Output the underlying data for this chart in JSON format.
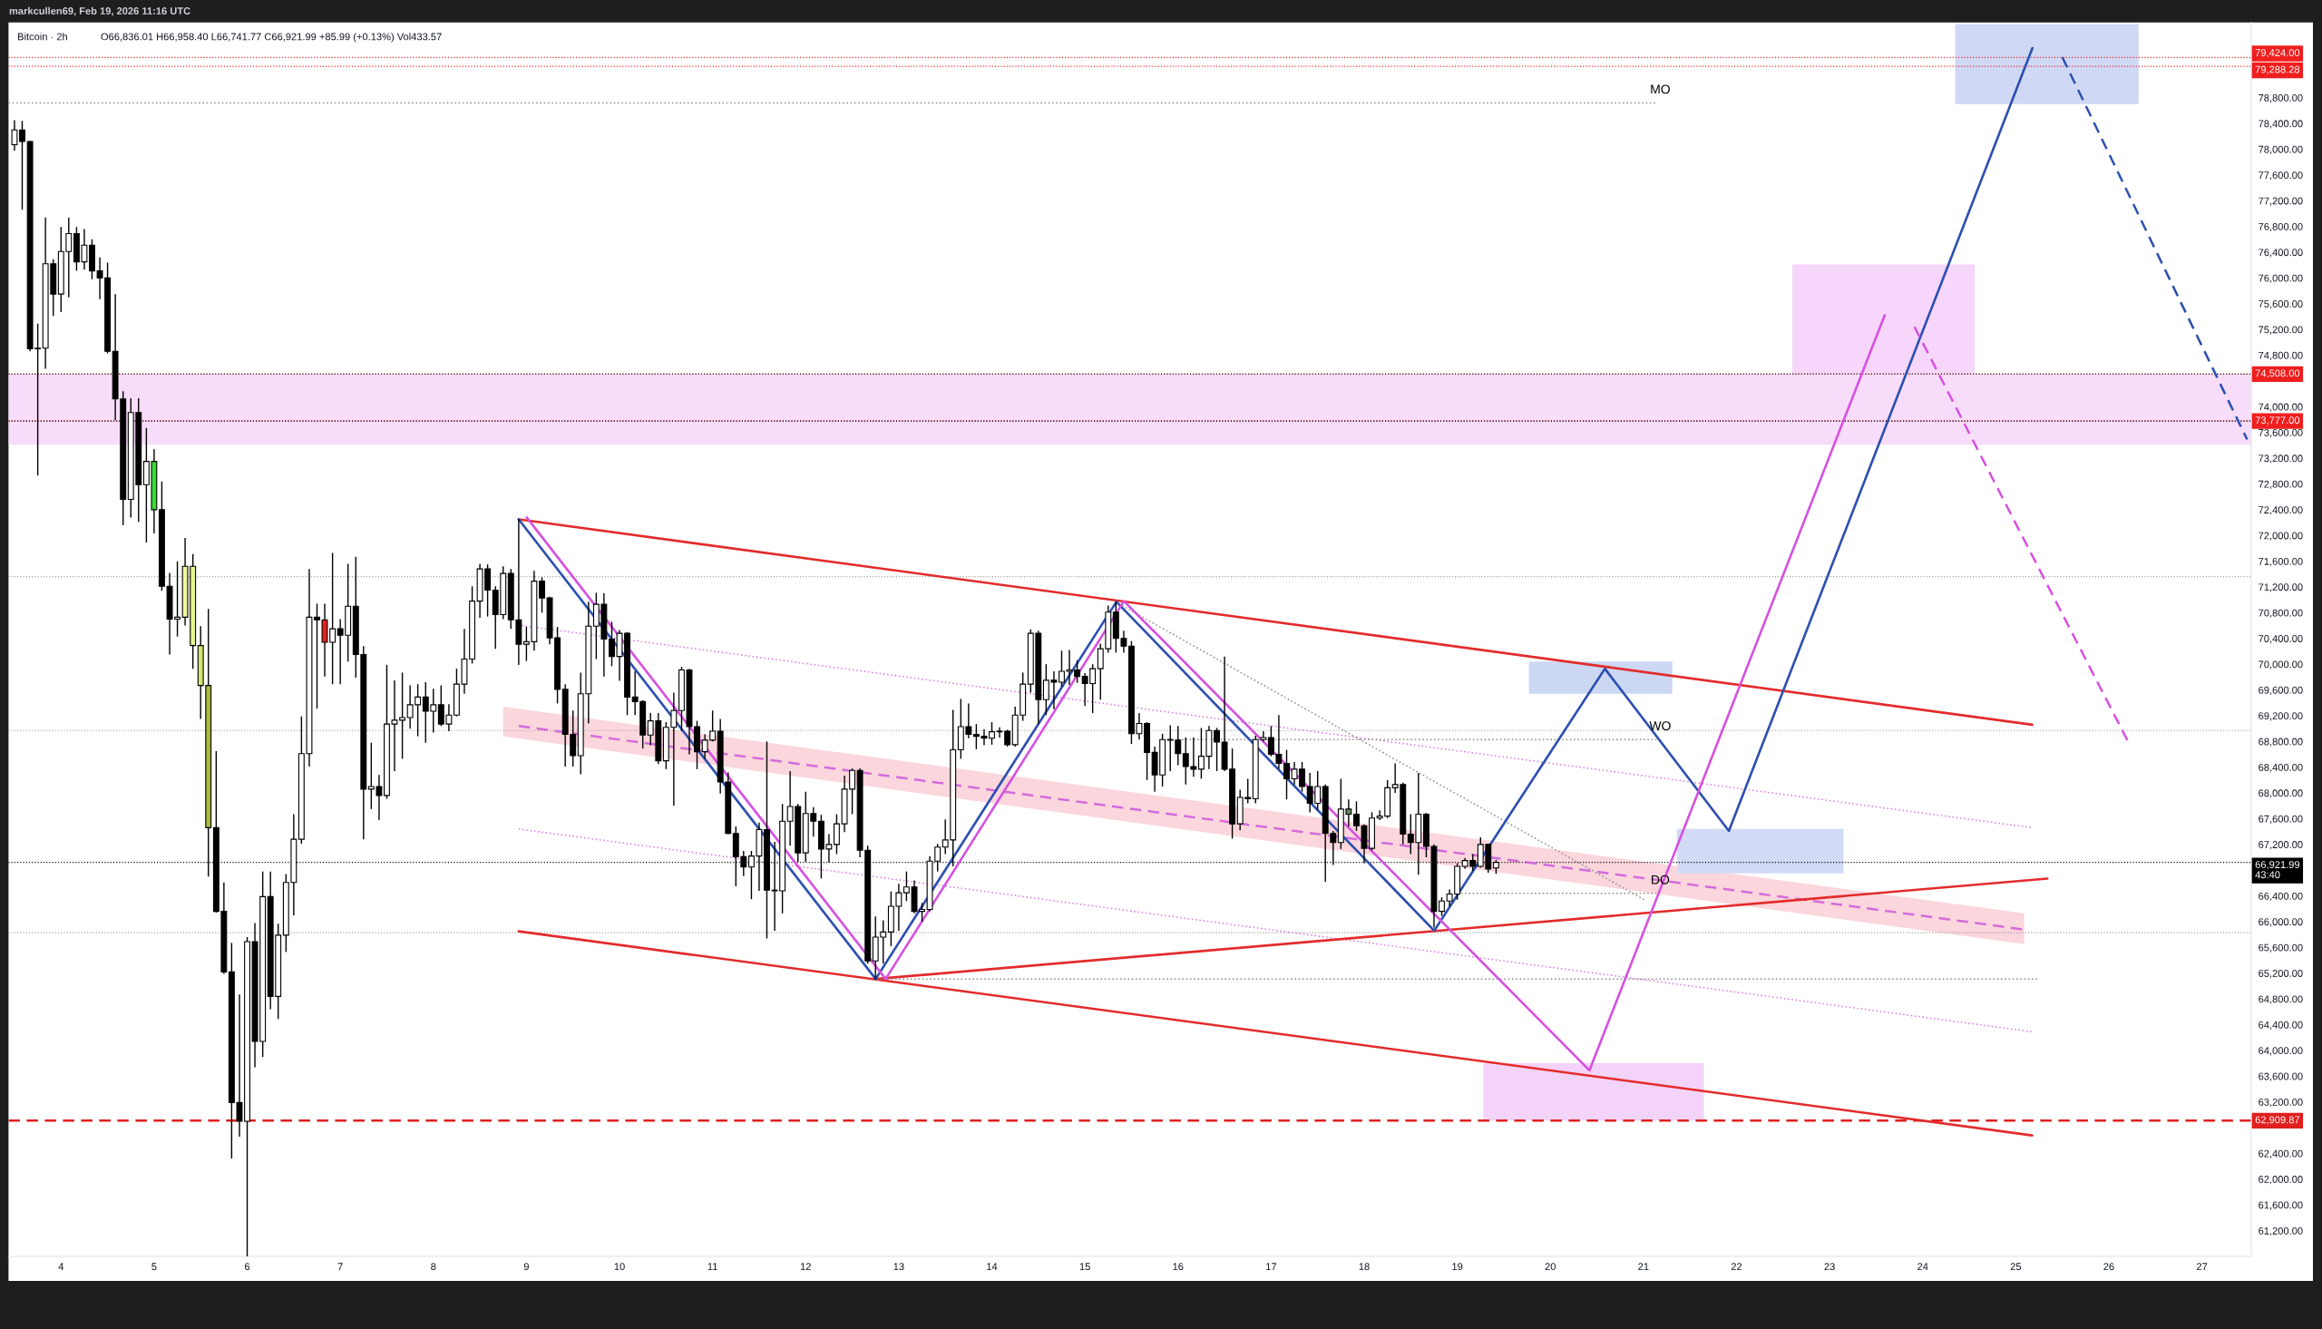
{
  "chart_data": {
    "type": "candlestick",
    "title": "Bitcoin · 2h",
    "subtitle": "O66,836.01 H66,958.40 L66,741.77 C66,921.99 +85.99 (+0.13%) Vol433.57",
    "annotations": [
      "markcullen69, Feb 19, 2026 11:16 UTC"
    ],
    "x": [
      3.5,
      3.583,
      3.667,
      3.75,
      3.833,
      3.917,
      4,
      4.083,
      4.167,
      4.25,
      4.333,
      4.417,
      4.5,
      4.583,
      4.667,
      4.75,
      4.833,
      4.917,
      5,
      5.083,
      5.167,
      5.25,
      5.333,
      5.417,
      5.5,
      5.583,
      5.667,
      5.75,
      5.833,
      5.917,
      6,
      6.083,
      6.167,
      6.25,
      6.333,
      6.417,
      6.5,
      6.583,
      6.667,
      6.75,
      6.833,
      6.917,
      7,
      7.083,
      7.167,
      7.25,
      7.333,
      7.417,
      7.5,
      7.583,
      7.667,
      7.75,
      7.833,
      7.917,
      8,
      8.083,
      8.167,
      8.25,
      8.333,
      8.417,
      8.5,
      8.583,
      8.667,
      8.75,
      8.833,
      8.917,
      9,
      9.083,
      9.167,
      9.25,
      9.333,
      9.417,
      9.5,
      9.583,
      9.667,
      9.75,
      9.833,
      9.917,
      10,
      10.083,
      10.167,
      10.25,
      10.333,
      10.417,
      10.5,
      10.583,
      10.667,
      10.75,
      10.833,
      10.917,
      11,
      11.083,
      11.167,
      11.25,
      11.333,
      11.417,
      11.5,
      11.583,
      11.667,
      11.75,
      11.833,
      11.917,
      12,
      12.083,
      12.167,
      12.25,
      12.333,
      12.417,
      12.5,
      12.583,
      12.667,
      12.75,
      12.833,
      12.917,
      13,
      13.083,
      13.167,
      13.25,
      13.333,
      13.417,
      13.5,
      13.583,
      13.667,
      13.75,
      13.833,
      13.917,
      14,
      14.083,
      14.167,
      14.25,
      14.333,
      14.417,
      14.5,
      14.583,
      14.667,
      14.75,
      14.833,
      14.917,
      15,
      15.083,
      15.167,
      15.25,
      15.333,
      15.417,
      15.5,
      15.583,
      15.667,
      15.75,
      15.833,
      15.917,
      16,
      16.083,
      16.167,
      16.25,
      16.333,
      16.417,
      16.5,
      16.583,
      16.667,
      16.75,
      16.833,
      16.917,
      17,
      17.083,
      17.167,
      17.25,
      17.333,
      17.417,
      17.5,
      17.583,
      17.667,
      17.75,
      17.833,
      17.917,
      18,
      18.083,
      18.167,
      18.25,
      18.333,
      18.417,
      18.5,
      18.583,
      18.667,
      18.75,
      18.833,
      18.917,
      19,
      19.083,
      19.167,
      19.25,
      19.333,
      19.417
    ],
    "ohlc": [
      [
        78070,
        78450,
        77980,
        78300
      ],
      [
        78300,
        78440,
        77060,
        78120
      ],
      [
        78120,
        78130,
        74860,
        74900
      ],
      [
        74900,
        75290,
        72930,
        74910
      ],
      [
        74910,
        76940,
        74590,
        76220
      ],
      [
        76220,
        76290,
        75410,
        75750
      ],
      [
        75750,
        76790,
        75470,
        76410
      ],
      [
        76410,
        76940,
        75700,
        76690
      ],
      [
        76690,
        76790,
        76110,
        76250
      ],
      [
        76250,
        76760,
        76130,
        76510
      ],
      [
        76510,
        76600,
        75980,
        76110
      ],
      [
        76110,
        76320,
        75670,
        76000
      ],
      [
        76000,
        76240,
        74830,
        74860
      ],
      [
        74860,
        75750,
        73790,
        74120
      ],
      [
        74120,
        74240,
        72160,
        72560
      ],
      [
        72560,
        74130,
        72280,
        73910
      ],
      [
        73910,
        74130,
        72210,
        72790
      ],
      [
        72790,
        73670,
        71890,
        73150
      ],
      [
        73150,
        73340,
        72030,
        72400
      ],
      [
        72400,
        72840,
        71140,
        71210
      ],
      [
        71210,
        71420,
        70150,
        70700
      ],
      [
        70700,
        71600,
        70430,
        70730
      ],
      [
        70730,
        71960,
        70600,
        71520
      ],
      [
        71520,
        71710,
        69930,
        70290
      ],
      [
        70290,
        70590,
        69150,
        69670
      ],
      [
        69670,
        70860,
        66700,
        67460
      ],
      [
        67460,
        68650,
        66140,
        66160
      ],
      [
        66160,
        66610,
        65190,
        65220
      ],
      [
        65220,
        65670,
        62320,
        63190
      ],
      [
        63190,
        64870,
        62660,
        62900
      ],
      [
        62900,
        65760,
        60800,
        65690
      ],
      [
        65690,
        65980,
        63740,
        64140
      ],
      [
        64140,
        66780,
        63900,
        66390
      ],
      [
        66390,
        66780,
        64640,
        64840
      ],
      [
        64840,
        65970,
        64490,
        65790
      ],
      [
        65790,
        66740,
        65530,
        66610
      ],
      [
        66610,
        67670,
        66100,
        67280
      ],
      [
        67280,
        69190,
        67210,
        68610
      ],
      [
        68610,
        71480,
        68410,
        70730
      ],
      [
        70730,
        70940,
        69310,
        70690
      ],
      [
        70690,
        70940,
        69810,
        70340
      ],
      [
        70340,
        71730,
        69690,
        70550
      ],
      [
        70550,
        70700,
        69690,
        70450
      ],
      [
        70450,
        71560,
        70040,
        70900
      ],
      [
        70900,
        71670,
        69790,
        70150
      ],
      [
        70150,
        70280,
        67280,
        68060
      ],
      [
        68060,
        68780,
        67750,
        68100
      ],
      [
        68100,
        68280,
        67580,
        67960
      ],
      [
        67960,
        69990,
        67910,
        69070
      ],
      [
        69070,
        69750,
        68340,
        69130
      ],
      [
        69130,
        69870,
        68530,
        69170
      ],
      [
        69170,
        69670,
        69000,
        69370
      ],
      [
        69370,
        69690,
        68880,
        69490
      ],
      [
        69490,
        69720,
        68780,
        69270
      ],
      [
        69270,
        69620,
        68940,
        69370
      ],
      [
        69370,
        69670,
        69040,
        69070
      ],
      [
        69070,
        69380,
        68960,
        69210
      ],
      [
        69210,
        69930,
        69190,
        69690
      ],
      [
        69690,
        70550,
        69540,
        70080
      ],
      [
        70080,
        71210,
        70010,
        70980
      ],
      [
        70980,
        71560,
        70720,
        71480
      ],
      [
        71480,
        71550,
        70740,
        71150
      ],
      [
        71150,
        71210,
        70240,
        70770
      ],
      [
        70770,
        71520,
        70700,
        71410
      ],
      [
        71410,
        71480,
        70550,
        70690
      ],
      [
        70690,
        72250,
        69990,
        70310
      ],
      [
        70310,
        70580,
        70050,
        70350
      ],
      [
        70350,
        71450,
        70210,
        71290
      ],
      [
        71290,
        71350,
        70800,
        71030
      ],
      [
        71030,
        71050,
        70310,
        70410
      ],
      [
        70410,
        70580,
        69390,
        69610
      ],
      [
        69610,
        69690,
        68410,
        68910
      ],
      [
        68910,
        69280,
        68410,
        68580
      ],
      [
        68580,
        69870,
        68290,
        69540
      ],
      [
        69540,
        70970,
        69080,
        70590
      ],
      [
        70590,
        71110,
        70080,
        70930
      ],
      [
        70930,
        71100,
        69810,
        70390
      ],
      [
        70390,
        70660,
        69970,
        70120
      ],
      [
        70120,
        70530,
        69740,
        70480
      ],
      [
        70480,
        70500,
        69210,
        69490
      ],
      [
        69490,
        69890,
        69210,
        69420
      ],
      [
        69420,
        69440,
        68690,
        68900
      ],
      [
        68900,
        69240,
        68740,
        69120
      ],
      [
        69120,
        69240,
        68450,
        68500
      ],
      [
        68500,
        69100,
        68370,
        69020
      ],
      [
        69020,
        69560,
        67800,
        69280
      ],
      [
        69280,
        69960,
        68960,
        69910
      ],
      [
        69910,
        69930,
        68600,
        69030
      ],
      [
        69030,
        69120,
        68370,
        68640
      ],
      [
        68640,
        68910,
        68530,
        68820
      ],
      [
        68820,
        69280,
        68800,
        68960
      ],
      [
        68960,
        69150,
        67990,
        68170
      ],
      [
        68170,
        68320,
        67360,
        67370
      ],
      [
        67370,
        67480,
        66550,
        67010
      ],
      [
        67010,
        67100,
        66710,
        66850
      ],
      [
        66850,
        67100,
        66350,
        67020
      ],
      [
        67020,
        67540,
        66480,
        67430
      ],
      [
        67430,
        68800,
        65740,
        66490
      ],
      [
        66490,
        67240,
        65860,
        66480
      ],
      [
        66480,
        67830,
        66130,
        67560
      ],
      [
        67560,
        68340,
        67180,
        67790
      ],
      [
        67790,
        67830,
        66930,
        67070
      ],
      [
        67070,
        68020,
        66930,
        67680
      ],
      [
        67680,
        67780,
        67320,
        67560
      ],
      [
        67560,
        67660,
        66670,
        67130
      ],
      [
        67130,
        67360,
        66920,
        67200
      ],
      [
        67200,
        67670,
        67050,
        67520
      ],
      [
        67520,
        68270,
        67390,
        68060
      ],
      [
        68060,
        68380,
        67670,
        68350
      ],
      [
        68350,
        68380,
        67000,
        67110
      ],
      [
        67110,
        67180,
        65350,
        65390
      ],
      [
        65390,
        66080,
        65110,
        65760
      ],
      [
        65760,
        66020,
        65350,
        65840
      ],
      [
        65840,
        66470,
        65620,
        66240
      ],
      [
        66240,
        66590,
        65860,
        66450
      ],
      [
        66450,
        66780,
        66320,
        66540
      ],
      [
        66540,
        66640,
        66130,
        66160
      ],
      [
        66160,
        66290,
        66000,
        66190
      ],
      [
        66190,
        67020,
        66160,
        66940
      ],
      [
        66940,
        67210,
        66780,
        67160
      ],
      [
        67160,
        67590,
        67050,
        67270
      ],
      [
        67270,
        69290,
        66860,
        68670
      ],
      [
        68670,
        69460,
        68530,
        69030
      ],
      [
        69030,
        69390,
        68850,
        68910
      ],
      [
        68910,
        69070,
        68680,
        68880
      ],
      [
        68880,
        68990,
        68740,
        68850
      ],
      [
        68850,
        69100,
        68750,
        68950
      ],
      [
        68950,
        69020,
        68860,
        68960
      ],
      [
        68960,
        68980,
        68720,
        68750
      ],
      [
        68750,
        69340,
        68720,
        69210
      ],
      [
        69210,
        69870,
        69120,
        69690
      ],
      [
        69690,
        70540,
        69560,
        70480
      ],
      [
        70480,
        70520,
        69070,
        69450
      ],
      [
        69450,
        70000,
        69210,
        69750
      ],
      [
        69750,
        69890,
        69300,
        69720
      ],
      [
        69720,
        70210,
        69650,
        69890
      ],
      [
        69890,
        70220,
        69680,
        69910
      ],
      [
        69910,
        70060,
        69710,
        69810
      ],
      [
        69810,
        69860,
        69350,
        69700
      ],
      [
        69700,
        70000,
        69240,
        69930
      ],
      [
        69930,
        70320,
        69450,
        70240
      ],
      [
        70240,
        70910,
        70180,
        70810
      ],
      [
        70810,
        70970,
        70180,
        70400
      ],
      [
        70400,
        70520,
        70180,
        70280
      ],
      [
        70280,
        70360,
        68760,
        68920
      ],
      [
        68920,
        69240,
        68830,
        69080
      ],
      [
        69080,
        69100,
        68200,
        68630
      ],
      [
        68630,
        68720,
        68020,
        68280
      ],
      [
        68280,
        68920,
        68100,
        68830
      ],
      [
        68830,
        69050,
        68340,
        68820
      ],
      [
        68820,
        69040,
        68430,
        68610
      ],
      [
        68610,
        68860,
        68130,
        68410
      ],
      [
        68410,
        68860,
        68250,
        68370
      ],
      [
        68370,
        69010,
        68220,
        68570
      ],
      [
        68570,
        69040,
        68370,
        68970
      ],
      [
        68970,
        69010,
        68340,
        68790
      ],
      [
        68790,
        70120,
        68340,
        68370
      ],
      [
        68370,
        68690,
        67290,
        67520
      ],
      [
        67520,
        68050,
        67420,
        67930
      ],
      [
        67930,
        68220,
        67840,
        67910
      ],
      [
        67910,
        68890,
        67840,
        68830
      ],
      [
        68830,
        68960,
        68800,
        68860
      ],
      [
        68860,
        69040,
        68570,
        68600
      ],
      [
        68600,
        69210,
        68370,
        68460
      ],
      [
        68460,
        68670,
        67900,
        68220
      ],
      [
        68220,
        68480,
        68130,
        68370
      ],
      [
        68370,
        68480,
        68020,
        68100
      ],
      [
        68100,
        68310,
        67700,
        67840
      ],
      [
        67840,
        68340,
        67730,
        68100
      ],
      [
        68100,
        68130,
        66620,
        67370
      ],
      [
        67370,
        67410,
        66880,
        67230
      ],
      [
        67230,
        68220,
        67130,
        67750
      ],
      [
        67750,
        67900,
        67480,
        67670
      ],
      [
        67670,
        67870,
        67410,
        67490
      ],
      [
        67490,
        67510,
        66910,
        67140
      ],
      [
        67140,
        67700,
        67110,
        67610
      ],
      [
        67610,
        67730,
        67580,
        67640
      ],
      [
        67640,
        68200,
        67610,
        68080
      ],
      [
        68080,
        68460,
        68000,
        68130
      ],
      [
        68130,
        68160,
        67200,
        67360
      ],
      [
        67360,
        67670,
        67050,
        67230
      ],
      [
        67230,
        68310,
        66730,
        67670
      ],
      [
        67670,
        67690,
        67000,
        67170
      ],
      [
        67170,
        67200,
        65910,
        66160
      ],
      [
        66160,
        66380,
        66090,
        66320
      ],
      [
        66320,
        66500,
        66240,
        66430
      ],
      [
        66430,
        66910,
        66340,
        66860
      ],
      [
        66860,
        66990,
        66820,
        66950
      ],
      [
        66950,
        67050,
        66790,
        66860
      ],
      [
        66860,
        67310,
        66840,
        67200
      ],
      [
        67200,
        67210,
        66760,
        66820
      ],
      [
        66836.01,
        66958.4,
        66741.77,
        66921.99
      ]
    ],
    "colors": [
      "#ffffff",
      "#000000",
      "#000000",
      "#ffffff",
      "#ffffff",
      "#000000",
      "#ffffff",
      "#ffffff",
      "#000000",
      "#ffffff",
      "#000000",
      "#000000",
      "#000000",
      "#000000",
      "#000000",
      "#ffffff",
      "#000000",
      "#ffffff",
      "#33dd33",
      "#000000",
      "#000000",
      "#ffffff",
      "#f0f89c",
      "#e8f58c",
      "#d2e86c",
      "#a9b83c",
      "#000000",
      "#000000",
      "#000000",
      "#000000",
      "#ffffff",
      "#000000",
      "#ffffff",
      "#000000",
      "#ffffff",
      "#ffffff",
      "#ffffff",
      "#ffffff",
      "#ffffff",
      "#000000",
      "#e8201c",
      "#ffffff",
      "#000000",
      "#ffffff",
      "#000000",
      "#000000",
      "#ffffff",
      "#000000",
      "#ffffff",
      "#ffffff",
      "#ffffff",
      "#ffffff",
      "#ffffff",
      "#000000",
      "#ffffff",
      "#000000",
      "#ffffff",
      "#ffffff",
      "#ffffff",
      "#ffffff",
      "#ffffff",
      "#000000",
      "#000000",
      "#ffffff",
      "#000000",
      "#000000",
      "#ffffff",
      "#ffffff",
      "#000000",
      "#000000",
      "#000000",
      "#000000",
      "#000000",
      "#ffffff",
      "#ffffff",
      "#ffffff",
      "#000000",
      "#000000",
      "#ffffff",
      "#000000",
      "#000000",
      "#000000",
      "#ffffff",
      "#000000",
      "#ffffff",
      "#ffffff",
      "#ffffff",
      "#000000",
      "#000000",
      "#ffffff",
      "#ffffff",
      "#000000",
      "#000000",
      "#000000",
      "#000000",
      "#ffffff",
      "#ffffff",
      "#000000",
      "#000000",
      "#ffffff",
      "#ffffff",
      "#000000",
      "#ffffff",
      "#000000",
      "#000000",
      "#ffffff",
      "#ffffff",
      "#ffffff",
      "#ffffff",
      "#000000",
      "#000000",
      "#ffffff",
      "#ffffff",
      "#ffffff",
      "#ffffff",
      "#ffffff",
      "#000000",
      "#ffffff",
      "#ffffff",
      "#ffffff",
      "#ffffff",
      "#ffffff",
      "#ffffff",
      "#000000",
      "#000000",
      "#000000",
      "#ffffff",
      "#ffffff",
      "#000000",
      "#ffffff",
      "#ffffff",
      "#ffffff",
      "#000000",
      "#ffffff",
      "#000000",
      "#ffffff",
      "#ffffff",
      "#000000",
      "#000000",
      "#ffffff",
      "#ffffff",
      "#ffffff",
      "#000000",
      "#000000",
      "#000000",
      "#ffffff",
      "#000000",
      "#000000",
      "#ffffff",
      "#000000",
      "#000000",
      "#000000",
      "#000000",
      "#ffffff",
      "#ffffff",
      "#000000",
      "#000000",
      "#000000",
      "#ffffff",
      "#000000",
      "#ffffff",
      "#ffffff",
      "#000000",
      "#000000",
      "#000000",
      "#ffffff",
      "#000000",
      "#000000",
      "#ffffff",
      "#000000",
      "#000000",
      "#ffffff",
      "#5f8f5f",
      "#000000",
      "#000000",
      "#ffffff",
      "#ffffff",
      "#ffffff",
      "#ffffff",
      "#000000",
      "#000000",
      "#ffffff",
      "#000000",
      "#000000",
      "#ffffff",
      "#ffffff",
      "#ffffff",
      "#ffffff",
      "#000000",
      "#ffffff",
      "#000000",
      "#ffffff"
    ],
    "xlim": [
      3.436,
      27.53
    ],
    "xticks": [
      4,
      5,
      6,
      7,
      8,
      9,
      10,
      11,
      12,
      13,
      14,
      15,
      16,
      17,
      18,
      19,
      20,
      21,
      22,
      23,
      24,
      25,
      26,
      27
    ],
    "ylim": [
      60800,
      79970
    ],
    "yticks": [
      {
        "value": 61200,
        "label": "61,200.00"
      },
      {
        "value": 61600,
        "label": "61,600.00"
      },
      {
        "value": 62000,
        "label": "62,000.00"
      },
      {
        "value": 62400,
        "label": "62,400.00"
      },
      {
        "value": 63200,
        "label": "63,200.00"
      },
      {
        "value": 63600,
        "label": "63,600.00"
      },
      {
        "value": 64000,
        "label": "64,000.00"
      },
      {
        "value": 64400,
        "label": "64,400.00"
      },
      {
        "value": 64800,
        "label": "64,800.00"
      },
      {
        "value": 65200,
        "label": "65,200.00"
      },
      {
        "value": 65600,
        "label": "65,600.00"
      },
      {
        "value": 66000,
        "label": "66,000.00"
      },
      {
        "value": 66400,
        "label": "66,400.00"
      },
      {
        "value": 67200,
        "label": "67,200.00"
      },
      {
        "value": 67600,
        "label": "67,600.00"
      },
      {
        "value": 68000,
        "label": "68,000.00"
      },
      {
        "value": 68400,
        "label": "68,400.00"
      },
      {
        "value": 68800,
        "label": "68,800.00"
      },
      {
        "value": 69200,
        "label": "69,200.00"
      },
      {
        "value": 69600,
        "label": "69,600.00"
      },
      {
        "value": 70000,
        "label": "70,000.00"
      },
      {
        "value": 70400,
        "label": "70,400.00"
      },
      {
        "value": 70800,
        "label": "70,800.00"
      },
      {
        "value": 71200,
        "label": "71,200.00"
      },
      {
        "value": 71600,
        "label": "71,600.00"
      },
      {
        "value": 72000,
        "label": "72,000.00"
      },
      {
        "value": 72400,
        "label": "72,400.00"
      },
      {
        "value": 72800,
        "label": "72,800.00"
      },
      {
        "value": 73200,
        "label": "73,200.00"
      },
      {
        "value": 73600,
        "label": "73,600.00"
      },
      {
        "value": 74000,
        "label": "74,000.00"
      },
      {
        "value": 74800,
        "label": "74,800.00"
      },
      {
        "value": 75200,
        "label": "75,200.00"
      },
      {
        "value": 75600,
        "label": "75,600.00"
      },
      {
        "value": 76000,
        "label": "76,000.00"
      },
      {
        "value": 76400,
        "label": "76,400.00"
      },
      {
        "value": 76800,
        "label": "76,800.00"
      },
      {
        "value": 77200,
        "label": "77,200.00"
      },
      {
        "value": 77600,
        "label": "77,600.00"
      },
      {
        "value": 78000,
        "label": "78,000.00"
      },
      {
        "value": 78400,
        "label": "78,400.00"
      },
      {
        "value": 78800,
        "label": "78,800.00"
      }
    ],
    "series": [
      {
        "type": "line",
        "x": [
          8.75,
          25.09
        ],
        "values": [
          null,
          null
        ],
        "lower": [
          68880,
          65650
        ],
        "upper": [
          69340,
          66130
        ],
        "color": "#fbd6dc"
      },
      {
        "type": "line",
        "x": [
          24.35,
          26.32
        ],
        "values": [
          null,
          null
        ],
        "lower": [
          78700,
          78700
        ],
        "upper": [
          79940,
          79940
        ],
        "color": "#cfd9f5"
      },
      {
        "type": "line",
        "x": [
          22.6,
          24.56
        ],
        "values": [
          null,
          null
        ],
        "lower": [
          74508,
          74508
        ],
        "upper": [
          76210,
          76210
        ],
        "color": "#f6d6fa"
      },
      {
        "type": "line",
        "x": [
          19.77,
          21.31
        ],
        "values": [
          null,
          null
        ],
        "lower": [
          69540,
          69540
        ],
        "upper": [
          70040,
          70040
        ],
        "color": "#ccd7f4"
      },
      {
        "type": "line",
        "x": [
          21.36,
          23.15
        ],
        "values": [
          null,
          null
        ],
        "lower": [
          66750,
          66750
        ],
        "upper": [
          67440,
          67440
        ],
        "color": "#d1dbf6"
      },
      {
        "type": "line",
        "x": [
          19.28,
          21.65
        ],
        "values": [
          null,
          null
        ],
        "lower": [
          62909.87,
          62909.87
        ],
        "upper": [
          63800,
          63800
        ],
        "color": "#f4d3f9"
      },
      {
        "type": "line",
        "x": [
          8.917,
          25.128
        ],
        "values": [
          69040,
          65870
        ],
        "color": "#d46bdc",
        "line_style": "dashed"
      },
      {
        "type": "line",
        "x": [
          8.95,
          25.177
        ],
        "values": [
          70600,
          67460
        ],
        "color": "#d67cdc",
        "line_style": "dotted"
      },
      {
        "type": "line",
        "x": [
          8.917,
          25.177
        ],
        "values": [
          67440,
          64290
        ],
        "color": "#d67cdc",
        "line_style": "dotted"
      },
      {
        "type": "line",
        "x": [
          8.917,
          25.177
        ],
        "values": [
          72250,
          69060
        ],
        "color": "#e32b2b"
      },
      {
        "type": "line",
        "x": [
          8.917,
          25.177
        ],
        "values": [
          65850,
          62680
        ],
        "color": "#e32b2b"
      },
      {
        "type": "line",
        "x": [
          12.752,
          25.34
        ],
        "values": [
          65110,
          66670
        ],
        "color": "#e32b2b"
      },
      {
        "type": "line",
        "x": [
          15.4,
          21.01
        ],
        "values": [
          70910,
          66340
        ],
        "color": "#8a8a8a",
        "line_style": "dotted"
      },
      {
        "type": "line",
        "x": [
          12.752,
          25.25
        ],
        "values": [
          65110,
          65110
        ],
        "color": "#8a8a8a",
        "line_style": "dotted"
      },
      {
        "type": "line",
        "name": "MO",
        "x": [
          3.436,
          21.14
        ],
        "values": [
          78720,
          78720
        ],
        "color": "#8a8a8a",
        "line_style": "dotted"
      },
      {
        "type": "line",
        "name": "WO",
        "x": [
          16,
          21.14
        ],
        "values": [
          68830,
          68830
        ],
        "color": "#8a8a8a",
        "line_style": "dotted"
      },
      {
        "type": "line",
        "name": "DO",
        "x": [
          19,
          21.14
        ],
        "values": [
          66440,
          66440
        ],
        "color": "#8a8a8a",
        "line_style": "dotted"
      },
      {
        "type": "line",
        "x": [
          8.917,
          12.752,
          15.338,
          18.752,
          20.586,
          21.918,
          25.179
        ],
        "values": [
          72250,
          65110,
          70970,
          65860,
          69930,
          67410,
          79570
        ],
        "color": "#2d4fb0"
      },
      {
        "type": "line",
        "x": [
          9.003,
          12.859,
          15.419,
          20.42,
          23.592
        ],
        "values": [
          72280,
          65110,
          70980,
          63690,
          75420
        ],
        "color": "#d651e0"
      },
      {
        "type": "line",
        "x": [
          25.5,
          27.486
        ],
        "values": [
          79430,
          73490
        ],
        "color": "#2d4fb0",
        "line_style": "dashed"
      },
      {
        "type": "line",
        "x": [
          23.912,
          26.22
        ],
        "values": [
          75240,
          68760
        ],
        "color": "#d651e0",
        "line_style": "dashed"
      }
    ],
    "ref_lines": [
      {
        "axis": "y",
        "value": 79424,
        "label": "79,424.00",
        "color": "#f01f1f",
        "line_style": "dotted"
      },
      {
        "axis": "y",
        "value": 79288.28,
        "label": "79,288.28",
        "color": "#f01f1f",
        "line_style": "dotted"
      },
      {
        "axis": "y",
        "value": 71360,
        "color": "#9e9e9e",
        "line_style": "dotted"
      },
      {
        "axis": "y",
        "value": 68970,
        "color": "#9e9e9e",
        "line_style": "dotted"
      },
      {
        "axis": "y",
        "value": 65830,
        "color": "#9e9e9e",
        "line_style": "dotted"
      },
      {
        "axis": "y",
        "value": 66921.99,
        "label": "66,921.99\n43:40",
        "color": "#000000",
        "line_style": "dotted"
      },
      {
        "axis": "y",
        "value": 74508,
        "label": "74,508.00",
        "color": "#f01f1f",
        "line_style": "dotted"
      },
      {
        "axis": "y",
        "value": 74508,
        "color": "#000000",
        "line_style": "dotted"
      },
      {
        "axis": "y",
        "value": 73777,
        "label": "73,777.00",
        "color": "#f01f1f",
        "line_style": "dotted"
      },
      {
        "axis": "y",
        "value": 73777,
        "color": "#000000",
        "line_style": "dotted"
      },
      {
        "axis": "y",
        "value": 62909.87,
        "label": "62,909.87",
        "color": "#e01f1f",
        "line_style": "dashed"
      }
    ],
    "bands": [
      {
        "axis": "y",
        "from": 73410,
        "to": 74508,
        "color": "#f8ddfa"
      }
    ]
  }
}
